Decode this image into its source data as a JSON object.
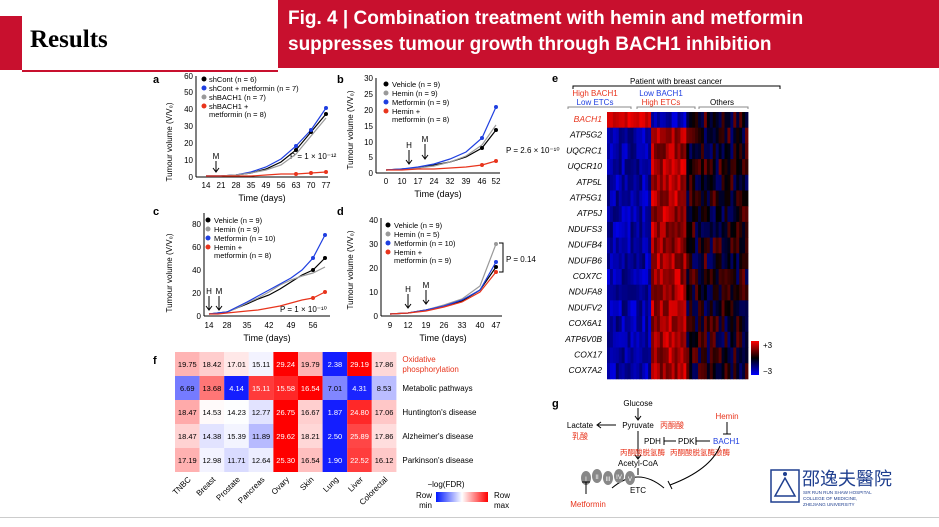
{
  "header": {
    "section": "Results",
    "title_line1": "Fig. 4 | Combination treatment with hemin and metformin",
    "title_line2": "suppresses tumour growth through BACH1 inhibition"
  },
  "colors": {
    "accent": "#c8102e",
    "black": "#000000",
    "grey": "#999999",
    "blue": "#1f3fe0",
    "red": "#e8341c"
  },
  "panels": {
    "a": {
      "letter": "a",
      "xlabel": "Time (days)",
      "ylabel": "Tumour volume (V/V₀)",
      "xticks": [
        "14",
        "21",
        "28",
        "35",
        "49",
        "56",
        "63",
        "70",
        "77"
      ],
      "yticks": [
        "0",
        "10",
        "20",
        "30",
        "40",
        "50",
        "60"
      ],
      "legend": [
        "shCont (n = 6)",
        "shCont + metformin (n = 7)",
        "shBACH1 (n = 7)",
        "shBACH1 +",
        "metformin (n = 8)"
      ],
      "marker_label": "M",
      "pvalue": "P = 1 × 10⁻¹²"
    },
    "b": {
      "letter": "b",
      "xlabel": "Time (days)",
      "ylabel": "Tumour volume (V/V₀)",
      "xticks": [
        "0",
        "10",
        "17",
        "24",
        "32",
        "39",
        "46",
        "52"
      ],
      "yticks": [
        "0",
        "5",
        "10",
        "15",
        "20",
        "25",
        "30"
      ],
      "legend": [
        "Vehicle (n = 9)",
        "Hemin (n = 9)",
        "Metformin (n = 9)",
        "Hemin +",
        "metformin (n = 8)"
      ],
      "marker_labels": [
        "H",
        "M"
      ],
      "pvalue": "P = 2.6 × 10⁻¹⁰"
    },
    "c": {
      "letter": "c",
      "xlabel": "Time (days)",
      "ylabel": "Tumour volume (V/V₀)",
      "xticks": [
        "14",
        "28",
        "35",
        "42",
        "49",
        "56"
      ],
      "yticks": [
        "0",
        "20",
        "40",
        "60",
        "80"
      ],
      "legend": [
        "Vehicle (n = 9)",
        "Hemin (n = 9)",
        "Metformin (n = 10)",
        "Hemin +",
        "metformin (n = 8)"
      ],
      "marker_labels": [
        "H",
        "M"
      ],
      "pvalue": "P = 1 × 10⁻¹⁰"
    },
    "d": {
      "letter": "d",
      "xlabel": "Time (days)",
      "ylabel": "Tumour volume (V/V₀)",
      "xticks": [
        "9",
        "12",
        "19",
        "26",
        "33",
        "40",
        "47"
      ],
      "yticks": [
        "0",
        "10",
        "20",
        "30",
        "40"
      ],
      "legend": [
        "Vehicle (n = 9)",
        "Hemin (n = 5)",
        "Metformin (n = 10)",
        "Hemin +",
        "metformin (n = 9)"
      ],
      "marker_labels": [
        "H",
        "M"
      ],
      "pvalue": "P = 0.14"
    },
    "e": {
      "letter": "e",
      "header": "Patient with breast cancer",
      "groups": [
        {
          "line1": "High BACH1",
          "line2": "Low ETCs",
          "color1": "#e8341c",
          "color2": "#1f3fe0"
        },
        {
          "line1": "Low BACH1",
          "line2": "High ETCs",
          "color1": "#1f3fe0",
          "color2": "#e8341c"
        },
        {
          "line1": "Others",
          "line2": "",
          "color1": "#000000",
          "color2": "#000000"
        }
      ],
      "genes": [
        "BACH1",
        "ATP5G2",
        "UQCRC1",
        "UQCR10",
        "ATP5L",
        "ATP5G1",
        "ATP5J",
        "NDUFS3",
        "NDUFB4",
        "NDUFB6",
        "COX7C",
        "NDUFA8",
        "NDUFV2",
        "COX6A1",
        "ATP6V0B",
        "COX17",
        "COX7A2"
      ],
      "scale_max": "+3",
      "scale_min": "−3"
    },
    "f": {
      "letter": "f",
      "columns": [
        "TNBC",
        "Breast",
        "Prostate",
        "Pancreas",
        "Ovary",
        "Skin",
        "Lung",
        "Liver",
        "Colorectal"
      ],
      "rows": [
        {
          "label": "Oxidative",
          "label2": "phosphorylation",
          "label_color": "#e8341c",
          "values": [
            "19.75",
            "18.42",
            "17.01",
            "15.11",
            "29.24",
            "19.79",
            "2.38",
            "29.19",
            "17.86"
          ]
        },
        {
          "label": "Metabolic pathways",
          "label2": "",
          "label_color": "#000000",
          "values": [
            "6.69",
            "13.68",
            "4.14",
            "15.11",
            "15.58",
            "16.54",
            "7.01",
            "4.31",
            "8.53"
          ]
        },
        {
          "label": "Huntington's disease",
          "label2": "",
          "label_color": "#000000",
          "values": [
            "18.47",
            "14.53",
            "14.23",
            "12.77",
            "26.75",
            "16.67",
            "1.87",
            "24.80",
            "17.06"
          ]
        },
        {
          "label": "Alzheimer's disease",
          "label2": "",
          "label_color": "#000000",
          "values": [
            "18.47",
            "14.38",
            "15.39",
            "11.89",
            "29.62",
            "18.21",
            "2.50",
            "25.89",
            "17.86"
          ]
        },
        {
          "label": "Parkinson's disease",
          "label2": "",
          "label_color": "#000000",
          "values": [
            "17.19",
            "12.98",
            "11.71",
            "12.64",
            "25.30",
            "16.54",
            "1.90",
            "22.52",
            "16.12"
          ]
        }
      ],
      "scale_title": "−log(FDR)",
      "scale_left": "Row",
      "scale_left2": "min",
      "scale_right": "Row",
      "scale_right2": "max"
    },
    "g": {
      "letter": "g",
      "glucose": "Glucose",
      "pyruvate": "Pyruvate",
      "pyruvate_cn": "丙酮酸",
      "lactate": "Lactate",
      "lactate_cn": "乳酸",
      "pdh": "PDH",
      "pdk": "PDK",
      "pdh_cn": "丙酮酸脱氢酶",
      "pdk_cn": "丙酮酸脱氢酶激酶",
      "bach1": "BACH1",
      "hemin": "Hemin",
      "acetyl": "Acetyl-CoA",
      "etc": "ETC",
      "metformin": "Metformin",
      "complexes": [
        "I",
        "II",
        "III",
        "IV",
        "V"
      ]
    }
  },
  "logo": {
    "chinese": "邵逸夫醫院",
    "line1": "SIR RUN RUN SHAW HOSPITAL",
    "line2": "COLLEGE OF MEDICINE,",
    "line3": "ZHEJIANG UNIVERSITY"
  }
}
